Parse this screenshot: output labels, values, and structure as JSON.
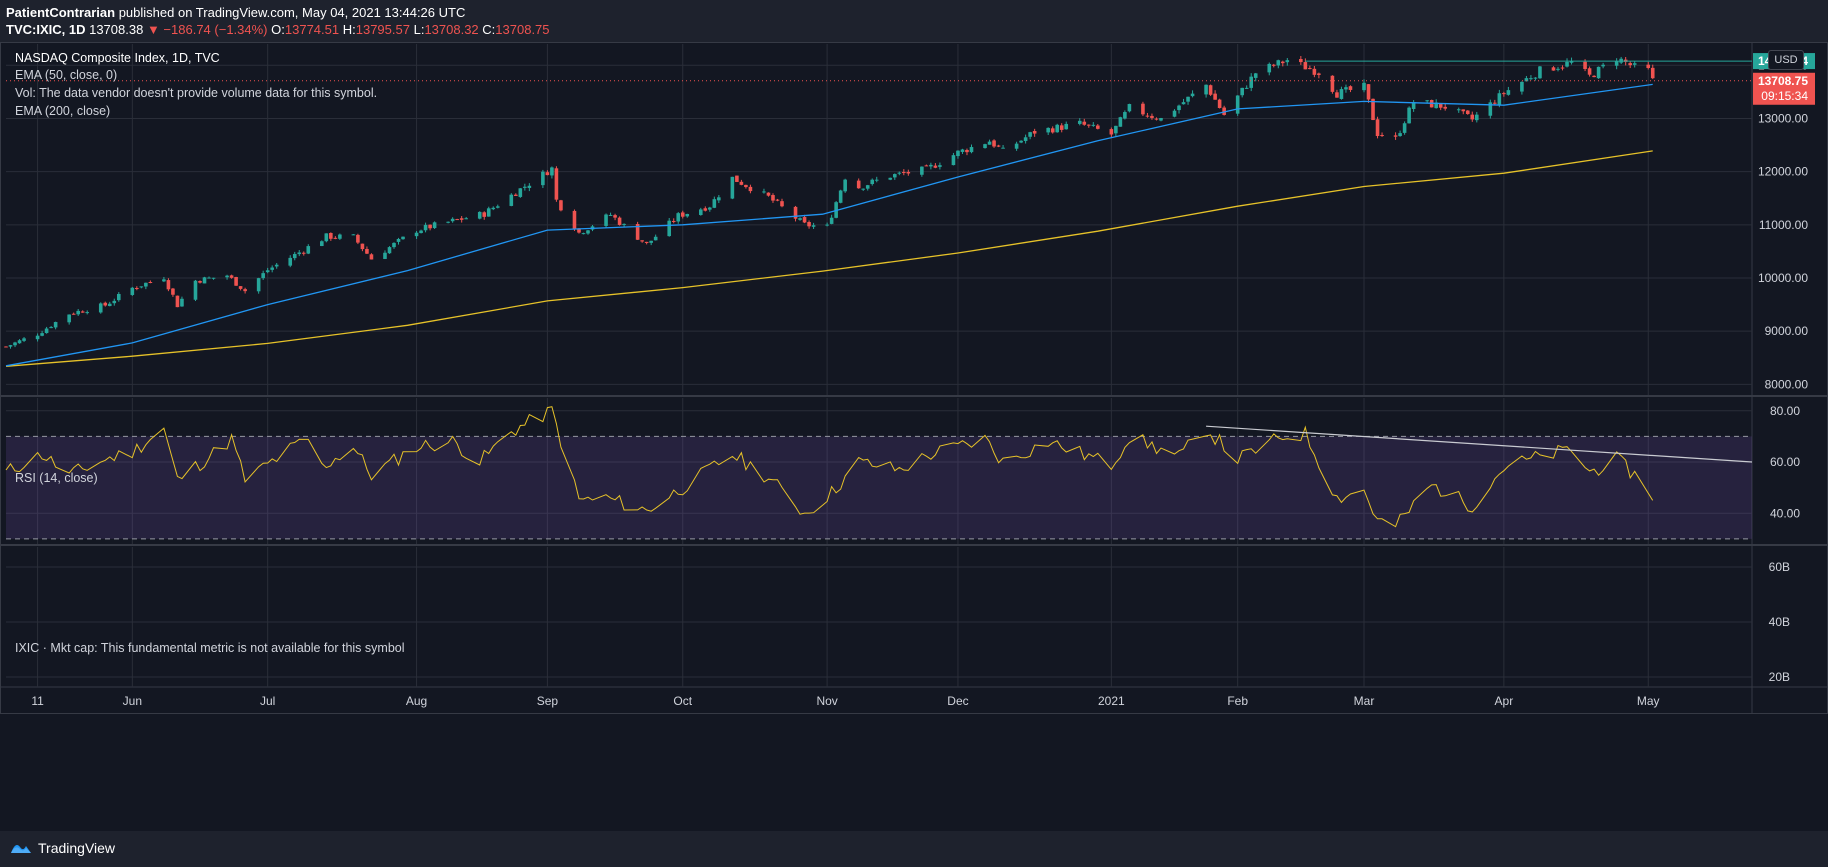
{
  "header": {
    "author": "PatientContrarian",
    "published": "published on TradingView.com, May 04, 2021 13:44:26 UTC",
    "symbol": "TVC:IXIC, 1D",
    "last": "13708.38",
    "change": "▼ −186.74 (−1.34%)",
    "o_label": "O:",
    "o_val": "13774.51",
    "h_label": "H:",
    "h_val": "13795.57",
    "l_label": "L:",
    "l_val": "13708.32",
    "c_label": "C:",
    "c_val": "13708.75"
  },
  "legend": {
    "title": "NASDAQ Composite Index, 1D, TVC",
    "ema50": "EMA (50, close, 0)",
    "vol": "Vol: The data vendor doesn't provide volume data for this symbol.",
    "ema200": "EMA (200, close)",
    "rsi": "RSI (14, close)",
    "mktcap": "IXIC · Mkt cap: This fundamental metric is not available for this symbol"
  },
  "currency": "USD",
  "price_tags": {
    "high_line": "14078.94",
    "last_price": "13708.75",
    "countdown": "09:15:34"
  },
  "colors": {
    "background": "#131722",
    "up": "#26a69a",
    "down": "#ef5350",
    "ema50": "#2196f3",
    "ema200": "#e6c229",
    "rsi": "#e6c229",
    "rsi_band": "#7e57c2"
  },
  "footer": {
    "brand": "TradingView",
    "logo_icon": "tradingview-logo-icon"
  },
  "chart_data": [
    {
      "type": "candlestick",
      "title": "NASDAQ Composite Index, 1D, TVC",
      "ylim": [
        7800,
        14400
      ],
      "y_ticks": [
        "14000.00",
        "13000.00",
        "12000.00",
        "11000.00",
        "10000.00",
        "9000.00",
        "8000.00"
      ],
      "x_ticks": [
        "11",
        "Jun",
        "Jul",
        "Aug",
        "Sep",
        "Oct",
        "Nov",
        "Dec",
        "2021",
        "Feb",
        "Mar",
        "Apr",
        "May"
      ],
      "x_range": [
        "2020-05-04",
        "2021-05-26"
      ],
      "closes": [
        {
          "date": "2020-05-04",
          "value": 8710
        },
        {
          "date": "2020-05-11",
          "value": 8950
        },
        {
          "date": "2020-05-18",
          "value": 9330
        },
        {
          "date": "2020-05-26",
          "value": 9490
        },
        {
          "date": "2020-06-01",
          "value": 9810
        },
        {
          "date": "2020-06-08",
          "value": 10020
        },
        {
          "date": "2020-06-11",
          "value": 9490
        },
        {
          "date": "2020-06-15",
          "value": 9950
        },
        {
          "date": "2020-06-22",
          "value": 10050
        },
        {
          "date": "2020-06-26",
          "value": 9760
        },
        {
          "date": "2020-07-01",
          "value": 10150
        },
        {
          "date": "2020-07-08",
          "value": 10480
        },
        {
          "date": "2020-07-14",
          "value": 10780
        },
        {
          "date": "2020-07-20",
          "value": 10770
        },
        {
          "date": "2020-07-24",
          "value": 10360
        },
        {
          "date": "2020-08-03",
          "value": 10900
        },
        {
          "date": "2020-08-10",
          "value": 11050
        },
        {
          "date": "2020-08-18",
          "value": 11210
        },
        {
          "date": "2020-08-26",
          "value": 11670
        },
        {
          "date": "2020-09-02",
          "value": 12060
        },
        {
          "date": "2020-09-03",
          "value": 11460
        },
        {
          "date": "2020-09-08",
          "value": 10850
        },
        {
          "date": "2020-09-15",
          "value": 11190
        },
        {
          "date": "2020-09-23",
          "value": 10630
        },
        {
          "date": "2020-09-30",
          "value": 11170
        },
        {
          "date": "2020-10-07",
          "value": 11360
        },
        {
          "date": "2020-10-12",
          "value": 11880
        },
        {
          "date": "2020-10-20",
          "value": 11520
        },
        {
          "date": "2020-10-28",
          "value": 11000
        },
        {
          "date": "2020-11-02",
          "value": 10960
        },
        {
          "date": "2020-11-06",
          "value": 11900
        },
        {
          "date": "2020-11-09",
          "value": 11710
        },
        {
          "date": "2020-11-16",
          "value": 11920
        },
        {
          "date": "2020-11-24",
          "value": 12040
        },
        {
          "date": "2020-12-01",
          "value": 12360
        },
        {
          "date": "2020-12-08",
          "value": 12580
        },
        {
          "date": "2020-12-11",
          "value": 12380
        },
        {
          "date": "2020-12-18",
          "value": 12750
        },
        {
          "date": "2020-12-28",
          "value": 12900
        },
        {
          "date": "2021-01-04",
          "value": 12700
        },
        {
          "date": "2021-01-08",
          "value": 13200
        },
        {
          "date": "2021-01-15",
          "value": 12990
        },
        {
          "date": "2021-01-25",
          "value": 13630
        },
        {
          "date": "2021-01-29",
          "value": 13070
        },
        {
          "date": "2021-02-05",
          "value": 13860
        },
        {
          "date": "2021-02-12",
          "value": 14100
        },
        {
          "date": "2021-02-19",
          "value": 13870
        },
        {
          "date": "2021-02-23",
          "value": 13470
        },
        {
          "date": "2021-03-01",
          "value": 13590
        },
        {
          "date": "2021-03-04",
          "value": 12720
        },
        {
          "date": "2021-03-08",
          "value": 12610
        },
        {
          "date": "2021-03-12",
          "value": 13320
        },
        {
          "date": "2021-03-19",
          "value": 13220
        },
        {
          "date": "2021-03-25",
          "value": 12980
        },
        {
          "date": "2021-04-01",
          "value": 13480
        },
        {
          "date": "2021-04-09",
          "value": 13900
        },
        {
          "date": "2021-04-16",
          "value": 14050
        },
        {
          "date": "2021-04-20",
          "value": 13790
        },
        {
          "date": "2021-04-26",
          "value": 14140
        },
        {
          "date": "2021-04-30",
          "value": 13960
        },
        {
          "date": "2021-05-03",
          "value": 13900
        },
        {
          "date": "2021-05-04",
          "value": 13708
        }
      ],
      "ema50": [
        {
          "date": "2020-05-04",
          "value": 8350
        },
        {
          "date": "2020-06-01",
          "value": 8780
        },
        {
          "date": "2020-07-01",
          "value": 9500
        },
        {
          "date": "2020-08-01",
          "value": 10140
        },
        {
          "date": "2020-09-01",
          "value": 10900
        },
        {
          "date": "2020-10-01",
          "value": 11000
        },
        {
          "date": "2020-11-01",
          "value": 11200
        },
        {
          "date": "2020-12-01",
          "value": 11900
        },
        {
          "date": "2021-01-01",
          "value": 12580
        },
        {
          "date": "2021-02-01",
          "value": 13180
        },
        {
          "date": "2021-03-01",
          "value": 13320
        },
        {
          "date": "2021-04-01",
          "value": 13250
        },
        {
          "date": "2021-05-04",
          "value": 13640
        }
      ],
      "ema200": [
        {
          "date": "2020-05-04",
          "value": 8340
        },
        {
          "date": "2020-06-01",
          "value": 8530
        },
        {
          "date": "2020-07-01",
          "value": 8770
        },
        {
          "date": "2020-08-01",
          "value": 9110
        },
        {
          "date": "2020-09-01",
          "value": 9570
        },
        {
          "date": "2020-10-01",
          "value": 9820
        },
        {
          "date": "2020-11-01",
          "value": 10130
        },
        {
          "date": "2020-12-01",
          "value": 10470
        },
        {
          "date": "2021-01-01",
          "value": 10880
        },
        {
          "date": "2021-02-01",
          "value": 11350
        },
        {
          "date": "2021-03-01",
          "value": 11720
        },
        {
          "date": "2021-04-01",
          "value": 11970
        },
        {
          "date": "2021-05-04",
          "value": 12390
        }
      ],
      "horizontal_lines": [
        {
          "value": 14078.94,
          "color": "#26a69a"
        },
        {
          "value": 13708.75,
          "color": "#ef5350"
        }
      ]
    },
    {
      "type": "line",
      "title": "RSI (14, close)",
      "ylim": [
        28,
        85
      ],
      "y_ticks": [
        "80.00",
        "60.00",
        "40.00"
      ],
      "band": [
        30,
        70
      ],
      "values": [
        {
          "date": "2020-05-04",
          "value": 56
        },
        {
          "date": "2020-05-12",
          "value": 63
        },
        {
          "date": "2020-05-18",
          "value": 55
        },
        {
          "date": "2020-05-26",
          "value": 61
        },
        {
          "date": "2020-06-01",
          "value": 64
        },
        {
          "date": "2020-06-08",
          "value": 73
        },
        {
          "date": "2020-06-11",
          "value": 53
        },
        {
          "date": "2020-06-18",
          "value": 62
        },
        {
          "date": "2020-06-23",
          "value": 69
        },
        {
          "date": "2020-06-26",
          "value": 53
        },
        {
          "date": "2020-07-06",
          "value": 65
        },
        {
          "date": "2020-07-10",
          "value": 69
        },
        {
          "date": "2020-07-13",
          "value": 58
        },
        {
          "date": "2020-07-20",
          "value": 66
        },
        {
          "date": "2020-07-24",
          "value": 55
        },
        {
          "date": "2020-08-03",
          "value": 66
        },
        {
          "date": "2020-08-11",
          "value": 68
        },
        {
          "date": "2020-08-17",
          "value": 60
        },
        {
          "date": "2020-08-24",
          "value": 72
        },
        {
          "date": "2020-09-02",
          "value": 80
        },
        {
          "date": "2020-09-08",
          "value": 45
        },
        {
          "date": "2020-09-14",
          "value": 46
        },
        {
          "date": "2020-09-23",
          "value": 41
        },
        {
          "date": "2020-10-01",
          "value": 50
        },
        {
          "date": "2020-10-12",
          "value": 63
        },
        {
          "date": "2020-10-20",
          "value": 54
        },
        {
          "date": "2020-10-28",
          "value": 40
        },
        {
          "date": "2020-11-03",
          "value": 48
        },
        {
          "date": "2020-11-09",
          "value": 60
        },
        {
          "date": "2020-11-18",
          "value": 57
        },
        {
          "date": "2020-11-25",
          "value": 63
        },
        {
          "date": "2020-12-07",
          "value": 69
        },
        {
          "date": "2020-12-11",
          "value": 60
        },
        {
          "date": "2020-12-21",
          "value": 68
        },
        {
          "date": "2021-01-04",
          "value": 59
        },
        {
          "date": "2021-01-08",
          "value": 70
        },
        {
          "date": "2021-01-19",
          "value": 62
        },
        {
          "date": "2021-01-25",
          "value": 73
        },
        {
          "date": "2021-02-01",
          "value": 61
        },
        {
          "date": "2021-02-11",
          "value": 70
        },
        {
          "date": "2021-02-16",
          "value": 71
        },
        {
          "date": "2021-02-23",
          "value": 46
        },
        {
          "date": "2021-03-01",
          "value": 49
        },
        {
          "date": "2021-03-04",
          "value": 37
        },
        {
          "date": "2021-03-08",
          "value": 35
        },
        {
          "date": "2021-03-16",
          "value": 51
        },
        {
          "date": "2021-03-25",
          "value": 43
        },
        {
          "date": "2021-04-01",
          "value": 58
        },
        {
          "date": "2021-04-09",
          "value": 62
        },
        {
          "date": "2021-04-16",
          "value": 65
        },
        {
          "date": "2021-04-20",
          "value": 56
        },
        {
          "date": "2021-04-26",
          "value": 61
        },
        {
          "date": "2021-04-30",
          "value": 55
        },
        {
          "date": "2021-05-04",
          "value": 47
        }
      ],
      "trendline": [
        {
          "date": "2021-01-25",
          "value": 74
        },
        {
          "date": "2021-05-26",
          "value": 60
        }
      ]
    },
    {
      "type": "line",
      "title": "IXIC · Mkt cap",
      "y_ticks": [
        "60B",
        "40B",
        "20B"
      ],
      "values": []
    }
  ]
}
